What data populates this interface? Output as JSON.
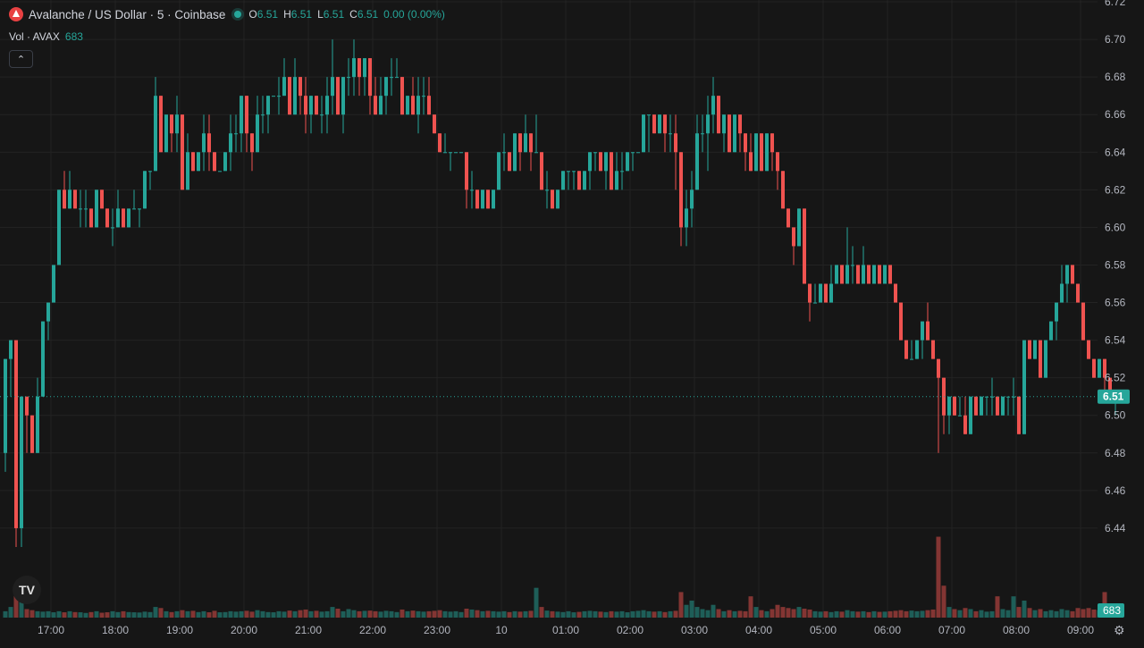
{
  "legend": {
    "symbol": "Avalanche / US Dollar · 5 · Coinbase",
    "o_label": "O",
    "o": "6.51",
    "h_label": "H",
    "h": "6.51",
    "l_label": "L",
    "l": "6.51",
    "c_label": "C",
    "c": "6.51",
    "change": "0.00 (0.00%)",
    "vol_label": "Vol · AVAX",
    "vol_value": "683",
    "collapse_icon": "chevron-up-icon"
  },
  "tv_logo_text": "TV",
  "colors": {
    "up": "#26a69a",
    "down": "#ef5350",
    "grid": "#232323",
    "bg": "#161616",
    "axis_text": "#b2b5be"
  },
  "chart_data": {
    "type": "candlestick",
    "ylim": [
      6.42,
      6.72
    ],
    "y_ticks": [
      "6.44",
      "6.46",
      "6.48",
      "6.50",
      "6.52",
      "6.54",
      "6.56",
      "6.58",
      "6.60",
      "6.62",
      "6.64",
      "6.66",
      "6.68",
      "6.70",
      "6.72"
    ],
    "x_ticks": [
      "17:00",
      "18:00",
      "19:00",
      "20:00",
      "21:00",
      "22:00",
      "23:00",
      "10",
      "01:00",
      "02:00",
      "03:00",
      "04:00",
      "05:00",
      "06:00",
      "07:00",
      "08:00",
      "09:00"
    ],
    "x_tick_positions": [
      0.75,
      1.75,
      2.75,
      3.75,
      4.75,
      5.75,
      6.75,
      7.75,
      8.75,
      9.75,
      10.75,
      11.75,
      12.75,
      13.75,
      14.75,
      15.75,
      16.75
    ],
    "start_hour": "16:15",
    "bar_interval_minutes": 5,
    "last_price": "6.51",
    "last_volume": "683",
    "volume_max_shown": 4200,
    "candles": [
      [
        6.48,
        6.53,
        6.47,
        6.53,
        300
      ],
      [
        6.53,
        6.54,
        6.51,
        6.54,
        500
      ],
      [
        6.54,
        6.54,
        6.43,
        6.44,
        1200
      ],
      [
        6.44,
        6.51,
        6.43,
        6.51,
        900
      ],
      [
        6.51,
        6.51,
        6.48,
        6.5,
        400
      ],
      [
        6.5,
        6.5,
        6.48,
        6.48,
        350
      ],
      [
        6.48,
        6.52,
        6.48,
        6.51,
        300
      ],
      [
        6.51,
        6.55,
        6.51,
        6.55,
        280
      ],
      [
        6.55,
        6.56,
        6.54,
        6.56,
        300
      ],
      [
        6.56,
        6.58,
        6.56,
        6.58,
        250
      ],
      [
        6.58,
        6.62,
        6.58,
        6.62,
        300
      ],
      [
        6.62,
        6.63,
        6.61,
        6.61,
        250
      ],
      [
        6.61,
        6.63,
        6.61,
        6.62,
        300
      ],
      [
        6.62,
        6.62,
        6.61,
        6.61,
        260
      ],
      [
        6.61,
        6.62,
        6.6,
        6.61,
        250
      ],
      [
        6.61,
        6.62,
        6.6,
        6.61,
        220
      ],
      [
        6.61,
        6.61,
        6.6,
        6.6,
        260
      ],
      [
        6.6,
        6.62,
        6.6,
        6.62,
        300
      ],
      [
        6.62,
        6.62,
        6.61,
        6.61,
        230
      ],
      [
        6.61,
        6.61,
        6.6,
        6.6,
        250
      ],
      [
        6.6,
        6.61,
        6.59,
        6.6,
        300
      ],
      [
        6.6,
        6.62,
        6.6,
        6.61,
        260
      ],
      [
        6.61,
        6.61,
        6.6,
        6.6,
        300
      ],
      [
        6.6,
        6.61,
        6.6,
        6.61,
        260
      ],
      [
        6.61,
        6.62,
        6.61,
        6.61,
        250
      ],
      [
        6.61,
        6.61,
        6.6,
        6.61,
        240
      ],
      [
        6.61,
        6.63,
        6.61,
        6.63,
        280
      ],
      [
        6.63,
        6.63,
        6.62,
        6.63,
        260
      ],
      [
        6.63,
        6.68,
        6.63,
        6.67,
        500
      ],
      [
        6.67,
        6.67,
        6.64,
        6.64,
        450
      ],
      [
        6.64,
        6.66,
        6.64,
        6.66,
        300
      ],
      [
        6.66,
        6.66,
        6.64,
        6.65,
        260
      ],
      [
        6.65,
        6.67,
        6.64,
        6.66,
        300
      ],
      [
        6.66,
        6.66,
        6.62,
        6.62,
        350
      ],
      [
        6.62,
        6.65,
        6.62,
        6.64,
        300
      ],
      [
        6.64,
        6.64,
        6.63,
        6.63,
        320
      ],
      [
        6.63,
        6.64,
        6.63,
        6.64,
        260
      ],
      [
        6.64,
        6.66,
        6.63,
        6.65,
        300
      ],
      [
        6.65,
        6.66,
        6.63,
        6.64,
        250
      ],
      [
        6.64,
        6.64,
        6.63,
        6.63,
        320
      ],
      [
        6.63,
        6.63,
        6.63,
        6.63,
        250
      ],
      [
        6.63,
        6.64,
        6.63,
        6.64,
        260
      ],
      [
        6.64,
        6.66,
        6.63,
        6.65,
        300
      ],
      [
        6.65,
        6.66,
        6.64,
        6.65,
        280
      ],
      [
        6.65,
        6.67,
        6.64,
        6.67,
        300
      ],
      [
        6.67,
        6.67,
        6.64,
        6.65,
        320
      ],
      [
        6.65,
        6.65,
        6.63,
        6.64,
        280
      ],
      [
        6.64,
        6.67,
        6.64,
        6.66,
        350
      ],
      [
        6.66,
        6.67,
        6.65,
        6.66,
        300
      ],
      [
        6.66,
        6.67,
        6.65,
        6.67,
        260
      ],
      [
        6.67,
        6.67,
        6.67,
        6.67,
        250
      ],
      [
        6.67,
        6.68,
        6.66,
        6.67,
        300
      ],
      [
        6.67,
        6.69,
        6.67,
        6.68,
        280
      ],
      [
        6.68,
        6.68,
        6.66,
        6.66,
        330
      ],
      [
        6.66,
        6.69,
        6.66,
        6.68,
        300
      ],
      [
        6.68,
        6.68,
        6.66,
        6.67,
        350
      ],
      [
        6.67,
        6.68,
        6.65,
        6.66,
        380
      ],
      [
        6.66,
        6.67,
        6.65,
        6.67,
        300
      ],
      [
        6.67,
        6.67,
        6.66,
        6.66,
        320
      ],
      [
        6.66,
        6.67,
        6.65,
        6.66,
        280
      ],
      [
        6.66,
        6.68,
        6.65,
        6.67,
        300
      ],
      [
        6.67,
        6.7,
        6.66,
        6.68,
        500
      ],
      [
        6.68,
        6.68,
        6.66,
        6.66,
        420
      ],
      [
        6.66,
        6.68,
        6.65,
        6.68,
        300
      ],
      [
        6.68,
        6.69,
        6.67,
        6.68,
        400
      ],
      [
        6.68,
        6.7,
        6.67,
        6.69,
        350
      ],
      [
        6.69,
        6.69,
        6.67,
        6.68,
        300
      ],
      [
        6.68,
        6.69,
        6.67,
        6.69,
        320
      ],
      [
        6.69,
        6.69,
        6.66,
        6.67,
        330
      ],
      [
        6.67,
        6.68,
        6.66,
        6.66,
        300
      ],
      [
        6.66,
        6.68,
        6.66,
        6.67,
        280
      ],
      [
        6.67,
        6.68,
        6.66,
        6.68,
        320
      ],
      [
        6.68,
        6.69,
        6.67,
        6.68,
        300
      ],
      [
        6.68,
        6.69,
        6.68,
        6.68,
        260
      ],
      [
        6.68,
        6.68,
        6.66,
        6.66,
        380
      ],
      [
        6.66,
        6.67,
        6.66,
        6.67,
        300
      ],
      [
        6.67,
        6.68,
        6.66,
        6.66,
        330
      ],
      [
        6.66,
        6.68,
        6.65,
        6.67,
        300
      ],
      [
        6.67,
        6.68,
        6.66,
        6.67,
        280
      ],
      [
        6.67,
        6.68,
        6.66,
        6.66,
        300
      ],
      [
        6.66,
        6.66,
        6.65,
        6.65,
        320
      ],
      [
        6.65,
        6.65,
        6.64,
        6.64,
        350
      ],
      [
        6.64,
        6.65,
        6.64,
        6.64,
        300
      ],
      [
        6.64,
        6.64,
        6.63,
        6.64,
        280
      ],
      [
        6.64,
        6.64,
        6.64,
        6.64,
        300
      ],
      [
        6.64,
        6.64,
        6.64,
        6.64,
        260
      ],
      [
        6.64,
        6.64,
        6.61,
        6.62,
        420
      ],
      [
        6.62,
        6.63,
        6.61,
        6.62,
        380
      ],
      [
        6.62,
        6.62,
        6.61,
        6.61,
        350
      ],
      [
        6.61,
        6.62,
        6.61,
        6.62,
        300
      ],
      [
        6.62,
        6.62,
        6.61,
        6.61,
        320
      ],
      [
        6.61,
        6.62,
        6.61,
        6.62,
        300
      ],
      [
        6.62,
        6.64,
        6.62,
        6.64,
        280
      ],
      [
        6.64,
        6.65,
        6.63,
        6.64,
        300
      ],
      [
        6.64,
        6.64,
        6.63,
        6.63,
        260
      ],
      [
        6.63,
        6.65,
        6.63,
        6.65,
        300
      ],
      [
        6.65,
        6.65,
        6.63,
        6.64,
        280
      ],
      [
        6.64,
        6.66,
        6.64,
        6.65,
        300
      ],
      [
        6.65,
        6.65,
        6.63,
        6.64,
        320
      ],
      [
        6.64,
        6.66,
        6.64,
        6.64,
        1400
      ],
      [
        6.64,
        6.64,
        6.62,
        6.62,
        500
      ],
      [
        6.62,
        6.63,
        6.61,
        6.62,
        330
      ],
      [
        6.62,
        6.62,
        6.61,
        6.61,
        300
      ],
      [
        6.61,
        6.62,
        6.61,
        6.62,
        280
      ],
      [
        6.62,
        6.63,
        6.62,
        6.63,
        260
      ],
      [
        6.63,
        6.63,
        6.62,
        6.63,
        300
      ],
      [
        6.63,
        6.63,
        6.62,
        6.63,
        250
      ],
      [
        6.63,
        6.63,
        6.62,
        6.62,
        270
      ],
      [
        6.62,
        6.63,
        6.62,
        6.63,
        300
      ],
      [
        6.63,
        6.64,
        6.62,
        6.64,
        320
      ],
      [
        6.64,
        6.64,
        6.63,
        6.64,
        300
      ],
      [
        6.64,
        6.64,
        6.63,
        6.63,
        280
      ],
      [
        6.63,
        6.64,
        6.62,
        6.64,
        260
      ],
      [
        6.64,
        6.64,
        6.62,
        6.62,
        300
      ],
      [
        6.62,
        6.64,
        6.62,
        6.63,
        280
      ],
      [
        6.63,
        6.64,
        6.62,
        6.63,
        300
      ],
      [
        6.63,
        6.64,
        6.63,
        6.64,
        250
      ],
      [
        6.64,
        6.64,
        6.63,
        6.64,
        300
      ],
      [
        6.64,
        6.64,
        6.64,
        6.64,
        320
      ],
      [
        6.64,
        6.66,
        6.64,
        6.66,
        350
      ],
      [
        6.66,
        6.66,
        6.64,
        6.66,
        300
      ],
      [
        6.66,
        6.66,
        6.65,
        6.65,
        280
      ],
      [
        6.65,
        6.66,
        6.65,
        6.66,
        300
      ],
      [
        6.66,
        6.66,
        6.64,
        6.65,
        260
      ],
      [
        6.65,
        6.66,
        6.64,
        6.65,
        300
      ],
      [
        6.65,
        6.66,
        6.62,
        6.64,
        320
      ],
      [
        6.64,
        6.64,
        6.59,
        6.6,
        1200
      ],
      [
        6.6,
        6.62,
        6.59,
        6.61,
        600
      ],
      [
        6.61,
        6.63,
        6.6,
        6.62,
        800
      ],
      [
        6.62,
        6.66,
        6.62,
        6.65,
        500
      ],
      [
        6.65,
        6.66,
        6.64,
        6.65,
        400
      ],
      [
        6.65,
        6.67,
        6.63,
        6.66,
        350
      ],
      [
        6.66,
        6.68,
        6.65,
        6.67,
        600
      ],
      [
        6.67,
        6.67,
        6.65,
        6.65,
        400
      ],
      [
        6.65,
        6.66,
        6.64,
        6.66,
        300
      ],
      [
        6.66,
        6.66,
        6.64,
        6.64,
        350
      ],
      [
        6.64,
        6.66,
        6.64,
        6.66,
        300
      ],
      [
        6.66,
        6.66,
        6.64,
        6.65,
        320
      ],
      [
        6.65,
        6.65,
        6.63,
        6.64,
        300
      ],
      [
        6.64,
        6.65,
        6.63,
        6.63,
        1000
      ],
      [
        6.63,
        6.65,
        6.63,
        6.65,
        500
      ],
      [
        6.65,
        6.65,
        6.63,
        6.63,
        350
      ],
      [
        6.63,
        6.65,
        6.63,
        6.65,
        300
      ],
      [
        6.65,
        6.65,
        6.63,
        6.64,
        400
      ],
      [
        6.64,
        6.64,
        6.62,
        6.63,
        600
      ],
      [
        6.63,
        6.63,
        6.61,
        6.61,
        500
      ],
      [
        6.61,
        6.61,
        6.6,
        6.6,
        450
      ],
      [
        6.6,
        6.6,
        6.58,
        6.59,
        400
      ],
      [
        6.59,
        6.61,
        6.59,
        6.61,
        500
      ],
      [
        6.61,
        6.61,
        6.57,
        6.57,
        420
      ],
      [
        6.57,
        6.57,
        6.55,
        6.56,
        380
      ],
      [
        6.56,
        6.57,
        6.56,
        6.56,
        300
      ],
      [
        6.56,
        6.57,
        6.56,
        6.57,
        280
      ],
      [
        6.57,
        6.57,
        6.56,
        6.56,
        300
      ],
      [
        6.56,
        6.58,
        6.56,
        6.57,
        260
      ],
      [
        6.57,
        6.58,
        6.57,
        6.58,
        300
      ],
      [
        6.58,
        6.58,
        6.57,
        6.57,
        280
      ],
      [
        6.57,
        6.6,
        6.57,
        6.58,
        350
      ],
      [
        6.58,
        6.59,
        6.57,
        6.58,
        300
      ],
      [
        6.58,
        6.58,
        6.57,
        6.57,
        280
      ],
      [
        6.57,
        6.59,
        6.57,
        6.58,
        300
      ],
      [
        6.58,
        6.58,
        6.57,
        6.57,
        260
      ],
      [
        6.57,
        6.58,
        6.57,
        6.58,
        300
      ],
      [
        6.58,
        6.58,
        6.57,
        6.57,
        270
      ],
      [
        6.57,
        6.58,
        6.57,
        6.58,
        280
      ],
      [
        6.58,
        6.58,
        6.57,
        6.57,
        300
      ],
      [
        6.57,
        6.57,
        6.56,
        6.56,
        320
      ],
      [
        6.56,
        6.56,
        6.54,
        6.54,
        350
      ],
      [
        6.54,
        6.54,
        6.53,
        6.53,
        300
      ],
      [
        6.53,
        6.54,
        6.53,
        6.53,
        330
      ],
      [
        6.53,
        6.54,
        6.53,
        6.54,
        300
      ],
      [
        6.54,
        6.55,
        6.53,
        6.55,
        320
      ],
      [
        6.55,
        6.56,
        6.54,
        6.54,
        350
      ],
      [
        6.54,
        6.54,
        6.53,
        6.53,
        380
      ],
      [
        6.53,
        6.53,
        6.48,
        6.52,
        3800
      ],
      [
        6.52,
        6.52,
        6.49,
        6.5,
        1500
      ],
      [
        6.5,
        6.51,
        6.49,
        6.51,
        500
      ],
      [
        6.51,
        6.51,
        6.5,
        6.5,
        400
      ],
      [
        6.5,
        6.51,
        6.5,
        6.5,
        350
      ],
      [
        6.5,
        6.51,
        6.49,
        6.49,
        450
      ],
      [
        6.49,
        6.51,
        6.49,
        6.51,
        400
      ],
      [
        6.51,
        6.51,
        6.5,
        6.5,
        300
      ],
      [
        6.5,
        6.51,
        6.5,
        6.51,
        350
      ],
      [
        6.51,
        6.51,
        6.5,
        6.51,
        280
      ],
      [
        6.51,
        6.52,
        6.5,
        6.51,
        300
      ],
      [
        6.51,
        6.51,
        6.5,
        6.5,
        1000
      ],
      [
        6.5,
        6.51,
        6.5,
        6.51,
        400
      ],
      [
        6.51,
        6.51,
        6.5,
        6.51,
        350
      ],
      [
        6.51,
        6.52,
        6.5,
        6.51,
        1000
      ],
      [
        6.51,
        6.51,
        6.49,
        6.49,
        500
      ],
      [
        6.49,
        6.54,
        6.49,
        6.54,
        800
      ],
      [
        6.54,
        6.54,
        6.53,
        6.53,
        450
      ],
      [
        6.53,
        6.54,
        6.53,
        6.54,
        350
      ],
      [
        6.54,
        6.54,
        6.52,
        6.52,
        400
      ],
      [
        6.52,
        6.54,
        6.52,
        6.54,
        300
      ],
      [
        6.54,
        6.55,
        6.54,
        6.55,
        350
      ],
      [
        6.55,
        6.56,
        6.54,
        6.56,
        300
      ],
      [
        6.56,
        6.58,
        6.56,
        6.57,
        400
      ],
      [
        6.57,
        6.58,
        6.56,
        6.58,
        350
      ],
      [
        6.58,
        6.58,
        6.57,
        6.57,
        300
      ],
      [
        6.57,
        6.57,
        6.56,
        6.56,
        450
      ],
      [
        6.56,
        6.56,
        6.54,
        6.54,
        400
      ],
      [
        6.54,
        6.54,
        6.53,
        6.53,
        450
      ],
      [
        6.53,
        6.53,
        6.52,
        6.52,
        380
      ],
      [
        6.52,
        6.53,
        6.52,
        6.53,
        350
      ],
      [
        6.53,
        6.53,
        6.51,
        6.52,
        1200
      ],
      [
        6.52,
        6.52,
        6.51,
        6.51,
        400
      ],
      [
        6.51,
        6.51,
        6.5,
        6.51,
        350
      ]
    ]
  }
}
